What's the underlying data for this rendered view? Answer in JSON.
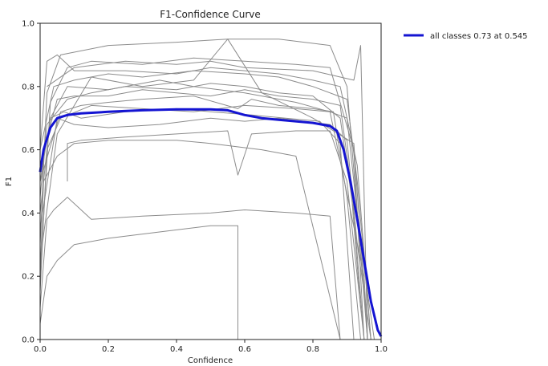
{
  "chart_data": {
    "type": "line",
    "title": "F1-Confidence Curve",
    "xlabel": "Confidence",
    "ylabel": "F1",
    "xlim": [
      0,
      1
    ],
    "ylim": [
      0,
      1
    ],
    "xticks": [
      "0.0",
      "0.2",
      "0.4",
      "0.6",
      "0.8",
      "1.0"
    ],
    "yticks": [
      "0.0",
      "0.2",
      "0.4",
      "0.6",
      "0.8",
      "1.0"
    ],
    "grid": false,
    "legend_position": "upper-right-outside",
    "legend": [
      "all classes 0.73 at 0.545"
    ],
    "colors": {
      "summary": "#1414d2",
      "classes": "#8c8c8c"
    },
    "series": [
      {
        "name": "all classes 0.73 at 0.545",
        "highlight": true,
        "x": [
          0.0,
          0.01,
          0.03,
          0.05,
          0.08,
          0.12,
          0.2,
          0.3,
          0.4,
          0.5,
          0.55,
          0.6,
          0.65,
          0.7,
          0.8,
          0.85,
          0.87,
          0.89,
          0.91,
          0.93,
          0.95,
          0.97,
          0.99,
          1.0
        ],
        "y": [
          0.53,
          0.6,
          0.67,
          0.7,
          0.71,
          0.715,
          0.72,
          0.725,
          0.728,
          0.728,
          0.725,
          0.71,
          0.7,
          0.695,
          0.685,
          0.675,
          0.66,
          0.6,
          0.5,
          0.38,
          0.25,
          0.12,
          0.03,
          0.01
        ]
      },
      {
        "x": [
          0.0,
          0.02,
          0.06,
          0.2,
          0.4,
          0.55,
          0.7,
          0.85,
          0.9,
          0.93,
          0.96
        ],
        "y": [
          0.3,
          0.78,
          0.9,
          0.93,
          0.94,
          0.95,
          0.95,
          0.93,
          0.8,
          0.4,
          0.0
        ]
      },
      {
        "x": [
          0.0,
          0.03,
          0.08,
          0.15,
          0.3,
          0.45,
          0.6,
          0.75,
          0.85,
          0.92,
          0.95
        ],
        "y": [
          0.2,
          0.75,
          0.86,
          0.88,
          0.87,
          0.89,
          0.88,
          0.87,
          0.86,
          0.6,
          0.0
        ]
      },
      {
        "x": [
          0.0,
          0.04,
          0.1,
          0.2,
          0.3,
          0.45,
          0.6,
          0.7,
          0.8,
          0.9,
          0.93,
          0.97
        ],
        "y": [
          0.6,
          0.8,
          0.82,
          0.84,
          0.83,
          0.85,
          0.84,
          0.83,
          0.8,
          0.76,
          0.5,
          0.0
        ]
      },
      {
        "x": [
          0.0,
          0.02,
          0.08,
          0.15,
          0.25,
          0.4,
          0.5,
          0.6,
          0.7,
          0.8,
          0.88,
          0.92,
          0.95
        ],
        "y": [
          0.45,
          0.68,
          0.76,
          0.78,
          0.8,
          0.79,
          0.81,
          0.8,
          0.78,
          0.77,
          0.7,
          0.4,
          0.0
        ]
      },
      {
        "x": [
          0.0,
          0.05,
          0.1,
          0.2,
          0.3,
          0.4,
          0.5,
          0.6,
          0.7,
          0.8,
          0.88,
          0.91,
          0.94
        ],
        "y": [
          0.55,
          0.76,
          0.77,
          0.77,
          0.79,
          0.78,
          0.77,
          0.79,
          0.77,
          0.76,
          0.74,
          0.5,
          0.1
        ]
      },
      {
        "x": [
          0.0,
          0.06,
          0.12,
          0.2,
          0.3,
          0.45,
          0.58,
          0.62,
          0.7,
          0.8,
          0.86,
          0.9,
          0.94
        ],
        "y": [
          0.5,
          0.72,
          0.74,
          0.75,
          0.76,
          0.77,
          0.73,
          0.76,
          0.74,
          0.73,
          0.72,
          0.45,
          0.0
        ]
      },
      {
        "x": [
          0.0,
          0.03,
          0.07,
          0.12,
          0.25,
          0.4,
          0.5,
          0.62,
          0.72,
          0.82,
          0.88,
          0.92
        ],
        "y": [
          0.4,
          0.7,
          0.72,
          0.7,
          0.72,
          0.73,
          0.72,
          0.71,
          0.7,
          0.69,
          0.62,
          0.0
        ]
      },
      {
        "x": [
          0.0,
          0.05,
          0.1,
          0.2,
          0.35,
          0.5,
          0.6,
          0.7,
          0.85,
          0.9,
          0.93,
          0.97
        ],
        "y": [
          0.35,
          0.7,
          0.68,
          0.67,
          0.68,
          0.7,
          0.69,
          0.7,
          0.68,
          0.63,
          0.3,
          0.0
        ]
      },
      {
        "x": [
          0.0,
          0.02,
          0.06,
          0.15,
          0.3,
          0.45,
          0.6,
          0.75,
          0.85,
          0.9,
          0.94,
          0.98
        ],
        "y": [
          0.15,
          0.6,
          0.7,
          0.74,
          0.73,
          0.72,
          0.74,
          0.73,
          0.72,
          0.7,
          0.3,
          0.0
        ]
      },
      {
        "x": [
          0.08,
          0.08,
          0.12,
          0.25,
          0.4,
          0.55,
          0.58,
          0.62,
          0.75,
          0.85,
          0.9,
          0.95
        ],
        "y": [
          0.5,
          0.62,
          0.63,
          0.64,
          0.65,
          0.66,
          0.52,
          0.65,
          0.66,
          0.66,
          0.5,
          0.0
        ]
      },
      {
        "x": [
          0.0,
          0.02,
          0.04,
          0.08,
          0.15,
          0.3,
          0.5,
          0.6,
          0.75,
          0.85,
          0.88
        ],
        "y": [
          0.1,
          0.38,
          0.41,
          0.45,
          0.38,
          0.39,
          0.4,
          0.41,
          0.4,
          0.39,
          0.0
        ]
      },
      {
        "x": [
          0.0,
          0.02,
          0.05,
          0.1,
          0.2,
          0.35,
          0.5,
          0.58,
          0.58
        ],
        "y": [
          0.05,
          0.2,
          0.25,
          0.3,
          0.32,
          0.34,
          0.36,
          0.36,
          0.0
        ]
      },
      {
        "x": [
          0.0,
          0.01,
          0.05,
          0.1,
          0.2,
          0.3,
          0.4,
          0.5,
          0.65,
          0.75,
          0.88
        ],
        "y": [
          0.2,
          0.5,
          0.58,
          0.62,
          0.63,
          0.63,
          0.63,
          0.62,
          0.6,
          0.58,
          0.0
        ]
      },
      {
        "x": [
          0.0,
          0.05,
          0.15,
          0.3,
          0.45,
          0.55,
          0.65,
          0.8,
          0.92,
          0.96
        ],
        "y": [
          0.25,
          0.65,
          0.83,
          0.8,
          0.82,
          0.95,
          0.78,
          0.7,
          0.62,
          0.0
        ]
      },
      {
        "x": [
          0.0,
          0.02,
          0.05,
          0.1,
          0.25,
          0.4,
          0.5,
          0.6,
          0.7,
          0.8,
          0.88,
          0.93,
          0.97
        ],
        "y": [
          0.6,
          0.88,
          0.9,
          0.85,
          0.85,
          0.84,
          0.86,
          0.85,
          0.84,
          0.82,
          0.8,
          0.55,
          0.0
        ]
      },
      {
        "x": [
          0.0,
          0.03,
          0.08,
          0.2,
          0.35,
          0.45,
          0.6,
          0.75,
          0.85,
          0.95,
          0.96
        ],
        "y": [
          0.5,
          0.7,
          0.8,
          0.79,
          0.82,
          0.8,
          0.78,
          0.75,
          0.72,
          0.2,
          0.0
        ]
      },
      {
        "x": [
          0.02,
          0.1,
          0.25,
          0.4,
          0.5,
          0.6,
          0.8,
          0.92,
          0.94,
          0.96
        ],
        "y": [
          0.8,
          0.86,
          0.88,
          0.87,
          0.88,
          0.86,
          0.85,
          0.82,
          0.93,
          0.0
        ]
      }
    ]
  }
}
